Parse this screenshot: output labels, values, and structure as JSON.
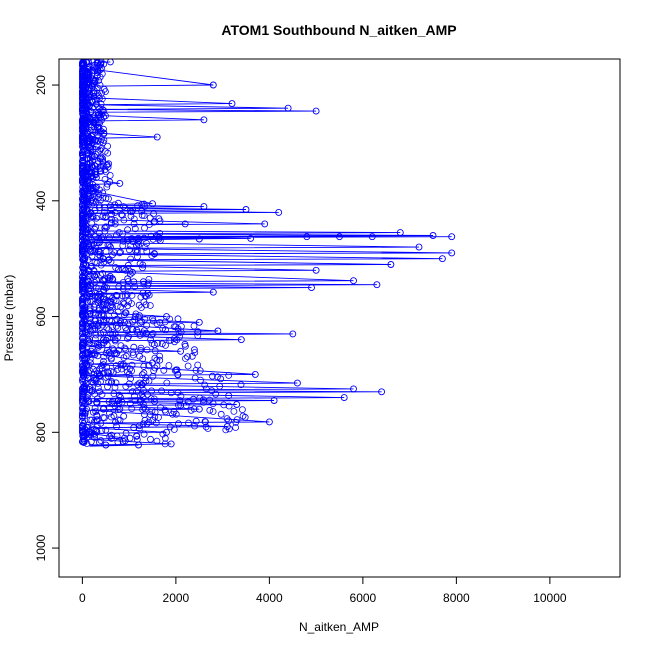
{
  "chart_data": {
    "type": "scatter",
    "title": "ATOM1 Southbound N_aitken_AMP",
    "xlabel": "N_aitken_AMP",
    "ylabel": "Pressure (mbar)",
    "xlim": [
      -500,
      11500
    ],
    "ylim": [
      155,
      1050
    ],
    "y_reversed": true,
    "x_ticks": [
      "0",
      "2000",
      "4000",
      "6000",
      "8000",
      "10000"
    ],
    "y_ticks": [
      "200",
      "400",
      "600",
      "800",
      "1000"
    ],
    "grid": false,
    "legend": "none",
    "colors": {
      "series": "#0000ff",
      "axes": "#000000",
      "background": "#ffffff"
    },
    "series": [
      {
        "marker": "open-circle",
        "line": true,
        "points": [
          [
            600,
            160
          ],
          [
            2800,
            200
          ],
          [
            4400,
            240
          ],
          [
            5000,
            245
          ],
          [
            3200,
            232
          ],
          [
            2600,
            260
          ],
          [
            1600,
            290
          ],
          [
            400,
            310
          ],
          [
            300,
            360
          ],
          [
            800,
            370
          ],
          [
            1500,
            405
          ],
          [
            2600,
            410
          ],
          [
            3500,
            415
          ],
          [
            4200,
            420
          ],
          [
            3900,
            440
          ],
          [
            2200,
            440
          ],
          [
            6800,
            455
          ],
          [
            7500,
            460
          ],
          [
            7900,
            462
          ],
          [
            6200,
            462
          ],
          [
            5500,
            462
          ],
          [
            4800,
            462
          ],
          [
            3600,
            465
          ],
          [
            2500,
            466
          ],
          [
            1200,
            470
          ],
          [
            7200,
            480
          ],
          [
            7900,
            490
          ],
          [
            7700,
            500
          ],
          [
            6600,
            510
          ],
          [
            5000,
            520
          ],
          [
            6300,
            545
          ],
          [
            5800,
            538
          ],
          [
            4900,
            550
          ],
          [
            2800,
            558
          ],
          [
            1400,
            560
          ],
          [
            600,
            590
          ],
          [
            1800,
            600
          ],
          [
            2500,
            610
          ],
          [
            2900,
            625
          ],
          [
            4500,
            630
          ],
          [
            3400,
            640
          ],
          [
            2100,
            660
          ],
          [
            1500,
            680
          ],
          [
            3700,
            700
          ],
          [
            4600,
            715
          ],
          [
            5800,
            725
          ],
          [
            6400,
            730
          ],
          [
            5600,
            740
          ],
          [
            4100,
            745
          ],
          [
            3300,
            752
          ],
          [
            2500,
            760
          ],
          [
            4000,
            782
          ],
          [
            3100,
            790
          ],
          [
            1800,
            800
          ],
          [
            900,
            810
          ],
          [
            1900,
            820
          ],
          [
            1200,
            822
          ],
          [
            500,
            822
          ],
          [
            150,
            800
          ],
          [
            100,
            740
          ],
          [
            60,
            680
          ],
          [
            80,
            600
          ],
          [
            40,
            520
          ],
          [
            120,
            450
          ],
          [
            70,
            380
          ],
          [
            30,
            300
          ],
          [
            90,
            250
          ],
          [
            50,
            200
          ],
          [
            20,
            170
          ],
          [
            250,
            700
          ],
          [
            350,
            650
          ],
          [
            200,
            560
          ],
          [
            450,
            500
          ],
          [
            300,
            430
          ],
          [
            150,
            350
          ],
          [
            400,
            280
          ],
          [
            250,
            220
          ],
          [
            700,
            640
          ],
          [
            1000,
            700
          ],
          [
            800,
            760
          ],
          [
            1300,
            740
          ],
          [
            900,
            610
          ],
          [
            1100,
            540
          ],
          [
            600,
            480
          ],
          [
            700,
            420
          ]
        ]
      }
    ]
  }
}
